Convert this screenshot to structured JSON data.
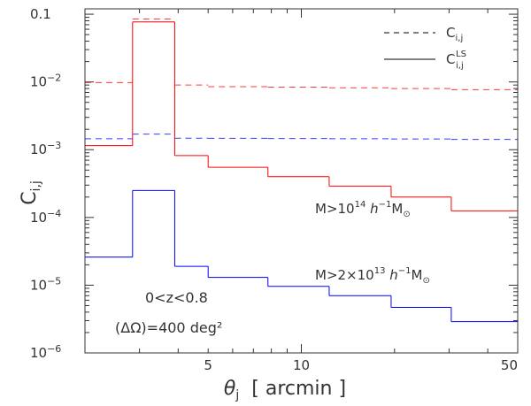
{
  "chart_data": {
    "type": "line",
    "xscale": "log",
    "yscale": "log",
    "xlim": [
      2.0,
      50.0
    ],
    "ylim": [
      1e-06,
      0.12
    ],
    "xlabel": {
      "symbol": "θ",
      "sub": "j",
      "text": "[ arcmin ]"
    },
    "ylabel": {
      "symbol": "C",
      "sub": "i,j"
    },
    "xticks": [
      {
        "value": 5,
        "label": "5"
      },
      {
        "value": 10,
        "label": "10"
      },
      {
        "value": 50,
        "label": "50"
      }
    ],
    "yticks": [
      {
        "value": 0.1,
        "base": "0.1",
        "exp": ""
      },
      {
        "value": 0.01,
        "base": "10",
        "exp": "−2"
      },
      {
        "value": 0.001,
        "base": "10",
        "exp": "−3"
      },
      {
        "value": 0.0001,
        "base": "10",
        "exp": "−4"
      },
      {
        "value": 1e-05,
        "base": "10",
        "exp": "−5"
      },
      {
        "value": 1e-06,
        "base": "10",
        "exp": "−6"
      }
    ],
    "bin_edges": [
      2.0,
      2.85,
      3.9,
      5.0,
      7.8,
      12.3,
      19.5,
      30.5,
      50.0
    ],
    "series": [
      {
        "name": "C_ij M>1e14",
        "style": "dashed",
        "color": "#ff3b3b",
        "values": [
          0.0098,
          0.085,
          0.009,
          0.0085,
          0.0084,
          0.0082,
          0.008,
          0.0077
        ]
      },
      {
        "name": "C_ij^LS M>1e14",
        "style": "solid",
        "color": "#ff0000",
        "values": [
          0.00115,
          0.077,
          0.00082,
          0.00055,
          0.0004,
          0.00029,
          0.0002,
          0.000125
        ]
      },
      {
        "name": "C_ij M>2e13",
        "style": "dashed",
        "color": "#3b3bff",
        "values": [
          0.00145,
          0.0017,
          0.00148,
          0.00147,
          0.00146,
          0.00145,
          0.00144,
          0.00142
        ]
      },
      {
        "name": "C_ij^LS M>2e13",
        "style": "solid",
        "color": "#0000ff",
        "values": [
          2.6e-05,
          0.00025,
          1.9e-05,
          1.3e-05,
          9.6e-06,
          7e-06,
          4.7e-06,
          2.9e-06
        ]
      }
    ],
    "legend": {
      "position": "top-right",
      "entries": [
        {
          "style": "dashed",
          "symbol": "C",
          "sub": "i,j",
          "sup": ""
        },
        {
          "style": "solid",
          "symbol": "C",
          "sub": "i,j",
          "sup": "LS"
        }
      ]
    },
    "annotations": {
      "red_mass": {
        "pre": "M>10",
        "exp": "14",
        "post": " h",
        "post_exp": "−1",
        "tail": "M",
        "tail_sub": "⊙"
      },
      "blue_mass": {
        "pre": "M>2×10",
        "exp": "13",
        "post": " h",
        "post_exp": "−1",
        "tail": "M",
        "tail_sub": "⊙"
      },
      "redshift": "0<z<0.8",
      "area": "(ΔΩ)=400 deg²"
    }
  }
}
